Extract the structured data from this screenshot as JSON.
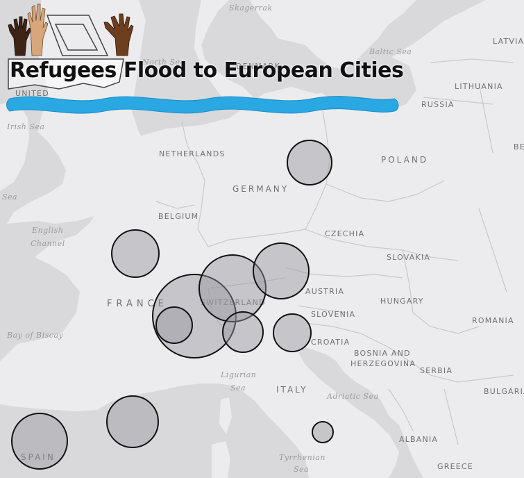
{
  "title": "Refugees Flood to European Cities",
  "colors": {
    "land": "#ececee",
    "water": "#d9d9dc",
    "border": "#c9c9cd",
    "bubble_fill": "rgba(150,150,158,0.45)",
    "bubble_stroke": "#111111",
    "wave": "#29a8e3"
  },
  "labels": {
    "skagerrak": "Skagerrak",
    "latvia": "LATVIA",
    "baltic_sea": "Baltic Sea",
    "north_sea": "North Sea",
    "denmark": "DENMARK",
    "lithuania": "LITHUANIA",
    "united": "UNITED",
    "russia": "RUSSIA",
    "irish_sea": "Irish Sea",
    "netherlands": "NETHERLANDS",
    "poland": "POLAND",
    "be": "BE",
    "germany": "GERMANY",
    "sea": "Sea",
    "belgium": "BELGIUM",
    "czechia": "CZECHIA",
    "english": "English",
    "channel": "Channel",
    "slovakia": "SLOVAKIA",
    "austria": "AUSTRIA",
    "france": "FRANCE",
    "switzerland": "SWITZERLAND",
    "hungary": "HUNGARY",
    "slovenia": "SLOVENIA",
    "romania": "ROMANIA",
    "bay_of_biscay": "Bay of Biscay",
    "croatia": "CROATIA",
    "bosnia": "BOSNIA AND",
    "herzegovina": "HERZEGOVINA",
    "ligurian": "Ligurian",
    "ligurian_sea": "Sea",
    "serbia": "SERBIA",
    "italy": "ITALY",
    "adriatic": "Adriatic Sea",
    "bulgaria": "BULGARIA",
    "albania": "ALBANIA",
    "spain": "SPAIN",
    "tyrrhenian": "Tyrrhenian",
    "tyrrhenian_sea": "Sea",
    "greece": "GREECE"
  },
  "logo": {
    "icons": [
      "dark-raised-hand-icon",
      "tan-raised-hand-icon",
      "brown-raised-hand-icon",
      "boat-outline-icon",
      "water-wave-icon"
    ]
  }
}
